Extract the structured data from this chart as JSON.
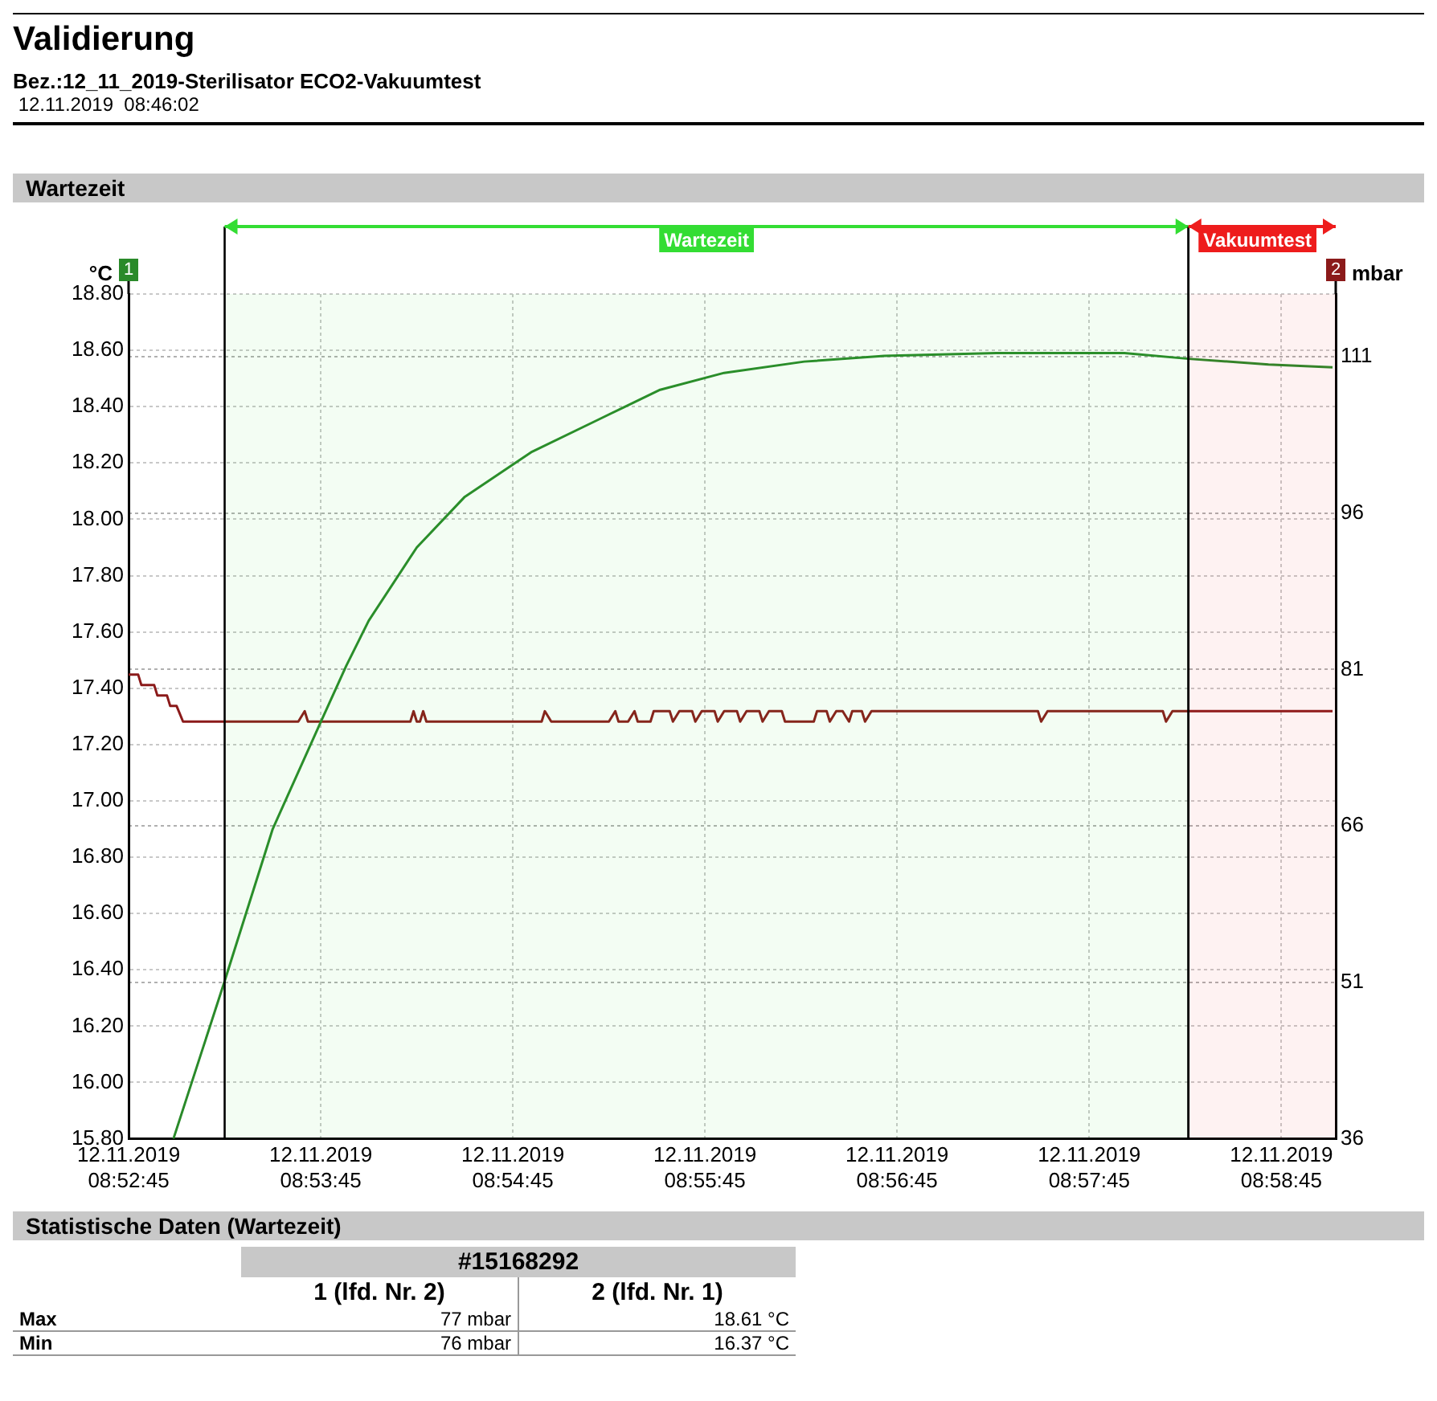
{
  "chart_data": {
    "type": "line",
    "title": "Validierung",
    "subtitle": "Bez.:12_11_2019-Sterilisator ECO2-Vakuumtest",
    "ylabel": "°C",
    "y2label": "mbar",
    "annotations": [
      "12.11.2019  08:46:02",
      "Wartezeit",
      "Statistische Daten (Wartezeit)",
      "#15168292",
      "1 (lfd. Nr. 2)",
      "2 (lfd. Nr. 1)",
      "Max",
      "77 mbar",
      "18.61 °C",
      "Min",
      "76 mbar",
      "16.37 °C"
    ],
    "xlim": [
      "2019-11-12T08:52:45",
      "2019-11-12T08:59:02"
    ],
    "xticks": [
      {
        "value": "2019-11-12T08:52:45",
        "label": "12.11.2019 08:52:45"
      },
      {
        "value": "2019-11-12T08:53:45",
        "label": "12.11.2019 08:53:45"
      },
      {
        "value": "2019-11-12T08:54:45",
        "label": "12.11.2019 08:54:45"
      },
      {
        "value": "2019-11-12T08:55:45",
        "label": "12.11.2019 08:55:45"
      },
      {
        "value": "2019-11-12T08:56:45",
        "label": "12.11.2019 08:56:45"
      },
      {
        "value": "2019-11-12T08:57:45",
        "label": "12.11.2019 08:57:45"
      },
      {
        "value": "2019-11-12T08:58:45",
        "label": "12.11.2019 08:58:45"
      }
    ],
    "ylim": [
      15.8,
      18.8
    ],
    "yticks": [
      {
        "value": 15.8,
        "label": "15.80"
      },
      {
        "value": 16,
        "label": "16.00"
      },
      {
        "value": 16.2,
        "label": "16.20"
      },
      {
        "value": 16.4,
        "label": "16.40"
      },
      {
        "value": 16.6,
        "label": "16.60"
      },
      {
        "value": 16.8,
        "label": "16.80"
      },
      {
        "value": 17,
        "label": "17.00"
      },
      {
        "value": 17.2,
        "label": "17.20"
      },
      {
        "value": 17.4,
        "label": "17.40"
      },
      {
        "value": 17.6,
        "label": "17.60"
      },
      {
        "value": 17.8,
        "label": "17.80"
      },
      {
        "value": 18,
        "label": "18.00"
      },
      {
        "value": 18.2,
        "label": "18.20"
      },
      {
        "value": 18.4,
        "label": "18.40"
      },
      {
        "value": 18.6,
        "label": "18.60"
      },
      {
        "value": 18.8,
        "label": "18.80"
      }
    ],
    "y2lim": [
      36,
      117
    ],
    "y2ticks": [
      36,
      51,
      66,
      81,
      96,
      111
    ],
    "grid": true,
    "bands": [
      {
        "axis": "x",
        "from": "2019-11-12T08:53:15",
        "to": "2019-11-12T08:58:16",
        "label": "Wartezeit",
        "color": "#33dd33"
      },
      {
        "axis": "x",
        "from": "2019-11-12T08:58:16",
        "to": "2019-11-12T08:59:02",
        "label": "Vakuumtest",
        "color": "#ee1c1c"
      }
    ],
    "series": [
      {
        "name": "1",
        "color": "#2a8a2a",
        "x": [
          "2019-11-12T08:52:59",
          "2019-11-12T08:53:15",
          "2019-11-12T08:53:30",
          "2019-11-12T08:53:45",
          "2019-11-12T08:53:53",
          "2019-11-12T08:54:00",
          "2019-11-12T08:54:15",
          "2019-11-12T08:54:30",
          "2019-11-12T08:54:51",
          "2019-11-12T08:55:11",
          "2019-11-12T08:55:31",
          "2019-11-12T08:55:51",
          "2019-11-12T08:56:16",
          "2019-11-12T08:56:41",
          "2019-11-12T08:57:16",
          "2019-11-12T08:57:56",
          "2019-11-12T08:58:16",
          "2019-11-12T08:58:41",
          "2019-11-12T08:59:01"
        ],
        "values": [
          15.8,
          16.36,
          16.9,
          17.28,
          17.48,
          17.64,
          17.9,
          18.08,
          18.24,
          18.35,
          18.46,
          18.52,
          18.56,
          18.58,
          18.59,
          18.59,
          18.57,
          18.55,
          18.54
        ]
      },
      {
        "name": "2",
        "color": "#8b1a1a",
        "axis": "y2",
        "x": [
          "2019-11-12T08:52:45",
          "2019-11-12T08:52:48",
          "2019-11-12T08:52:49",
          "2019-11-12T08:52:53",
          "2019-11-12T08:52:54",
          "2019-11-12T08:52:57",
          "2019-11-12T08:52:58",
          "2019-11-12T08:53:00",
          "2019-11-12T08:53:02",
          "2019-11-12T08:53:38",
          "2019-11-12T08:53:40",
          "2019-11-12T08:53:41",
          "2019-11-12T08:54:13",
          "2019-11-12T08:54:14",
          "2019-11-12T08:54:15",
          "2019-11-12T08:54:16",
          "2019-11-12T08:54:17",
          "2019-11-12T08:54:18",
          "2019-11-12T08:54:54",
          "2019-11-12T08:54:55",
          "2019-11-12T08:54:57",
          "2019-11-12T08:55:15",
          "2019-11-12T08:55:17",
          "2019-11-12T08:55:18",
          "2019-11-12T08:55:21",
          "2019-11-12T08:55:23",
          "2019-11-12T08:55:24",
          "2019-11-12T08:55:28",
          "2019-11-12T08:55:29",
          "2019-11-12T08:55:34",
          "2019-11-12T08:55:35",
          "2019-11-12T08:55:37",
          "2019-11-12T08:55:41",
          "2019-11-12T08:55:42",
          "2019-11-12T08:55:44",
          "2019-11-12T08:55:48",
          "2019-11-12T08:55:49",
          "2019-11-12T08:55:51",
          "2019-11-12T08:55:55",
          "2019-11-12T08:55:56",
          "2019-11-12T08:55:58",
          "2019-11-12T08:56:02",
          "2019-11-12T08:56:03",
          "2019-11-12T08:56:05",
          "2019-11-12T08:56:09",
          "2019-11-12T08:56:10",
          "2019-11-12T08:56:19",
          "2019-11-12T08:56:20",
          "2019-11-12T08:56:23",
          "2019-11-12T08:56:24",
          "2019-11-12T08:56:26",
          "2019-11-12T08:56:28",
          "2019-11-12T08:56:30",
          "2019-11-12T08:56:31",
          "2019-11-12T08:56:34",
          "2019-11-12T08:56:35",
          "2019-11-12T08:56:37",
          "2019-11-12T08:57:29",
          "2019-11-12T08:57:30",
          "2019-11-12T08:57:32",
          "2019-11-12T08:58:08",
          "2019-11-12T08:58:09",
          "2019-11-12T08:58:11",
          "2019-11-12T08:59:01"
        ],
        "values": [
          80.5,
          80.5,
          79.5,
          79.5,
          78.5,
          78.5,
          77.5,
          77.5,
          76,
          76,
          77,
          76,
          76,
          77,
          76,
          76,
          77,
          76,
          76,
          77,
          76,
          76,
          77,
          76,
          76,
          77,
          76,
          76,
          77,
          77,
          76,
          77,
          77,
          76,
          77,
          77,
          76,
          77,
          77,
          76,
          77,
          77,
          76,
          77,
          77,
          76,
          76,
          77,
          77,
          76,
          77,
          77,
          76,
          77,
          77,
          76,
          77,
          77,
          76,
          77,
          77,
          76,
          77,
          77
        ]
      }
    ]
  }
}
